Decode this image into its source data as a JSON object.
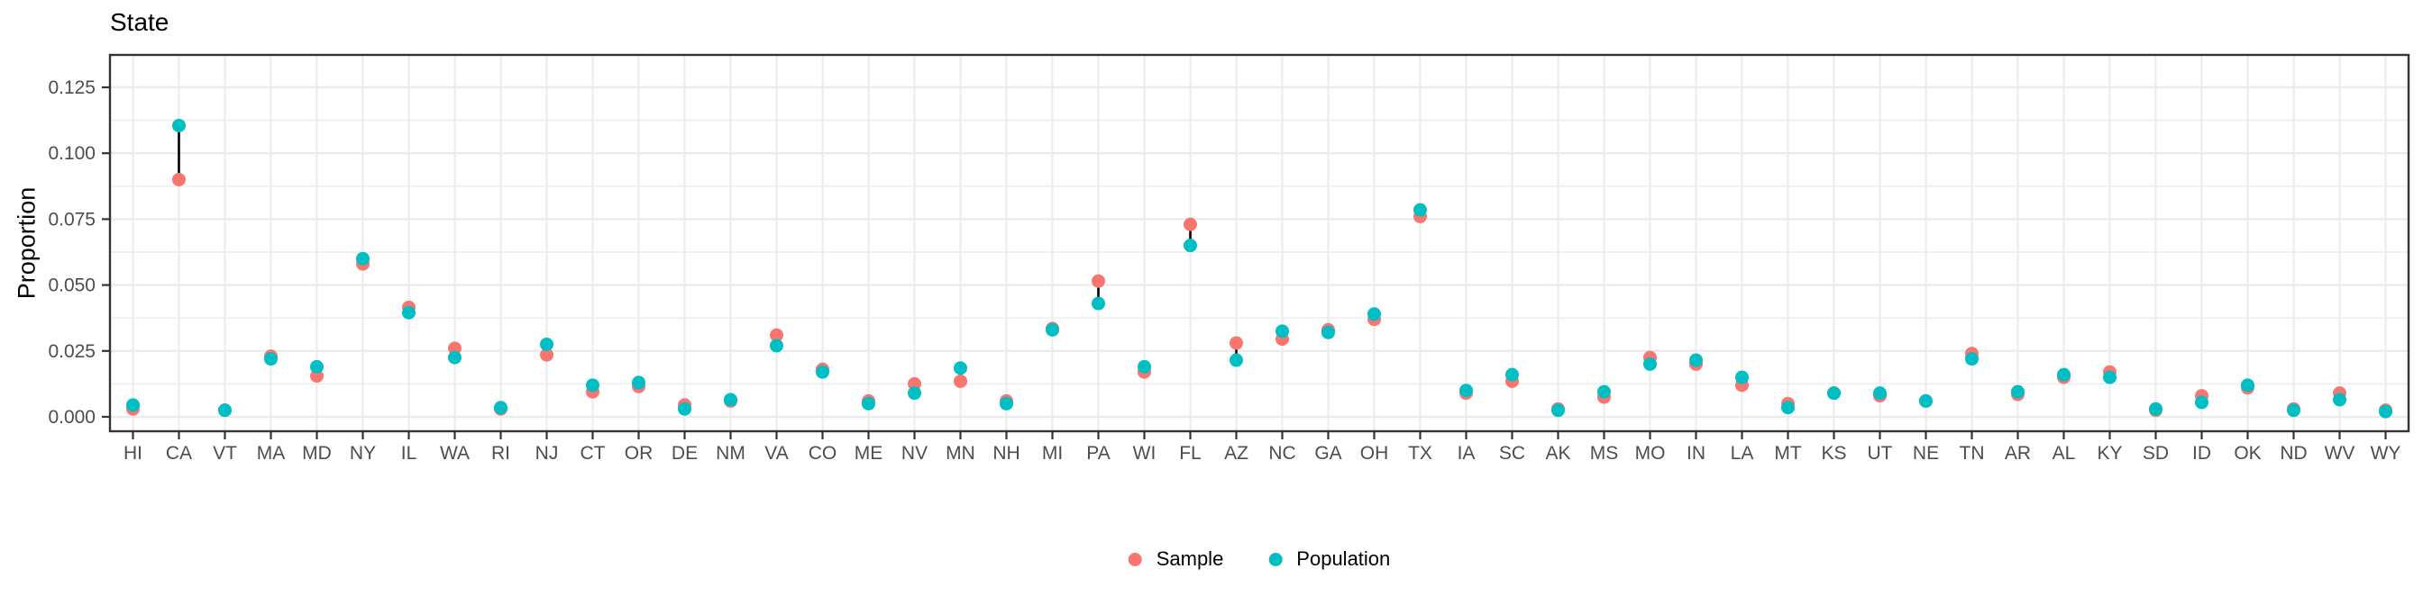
{
  "chart_data": {
    "type": "scatter",
    "subtype": "dumbbell",
    "title": "State",
    "xlabel": "",
    "ylabel": "Proportion",
    "categories": [
      "HI",
      "CA",
      "VT",
      "MA",
      "MD",
      "NY",
      "IL",
      "WA",
      "RI",
      "NJ",
      "CT",
      "OR",
      "DE",
      "NM",
      "VA",
      "CO",
      "ME",
      "NV",
      "MN",
      "NH",
      "MI",
      "PA",
      "WI",
      "FL",
      "AZ",
      "NC",
      "GA",
      "OH",
      "TX",
      "IA",
      "SC",
      "AK",
      "MS",
      "MO",
      "IN",
      "LA",
      "MT",
      "KS",
      "UT",
      "NE",
      "TN",
      "AR",
      "AL",
      "KY",
      "SD",
      "ID",
      "OK",
      "ND",
      "WV",
      "WY"
    ],
    "series": [
      {
        "name": "Sample",
        "color": "#F8766D",
        "values": [
          0.003,
          0.09,
          0.0025,
          0.023,
          0.0155,
          0.058,
          0.0415,
          0.026,
          0.003,
          0.0235,
          0.0095,
          0.0115,
          0.0045,
          0.006,
          0.031,
          0.018,
          0.006,
          0.0125,
          0.0135,
          0.006,
          0.0335,
          0.0515,
          0.017,
          0.073,
          0.028,
          0.0295,
          0.033,
          0.037,
          0.076,
          0.009,
          0.0135,
          0.003,
          0.0075,
          0.0225,
          0.02,
          0.012,
          0.005,
          0.009,
          0.008,
          0.006,
          0.024,
          0.0085,
          0.015,
          0.017,
          0.0025,
          0.008,
          0.011,
          0.003,
          0.009,
          0.0025
        ]
      },
      {
        "name": "Population",
        "color": "#00BFC4",
        "values": [
          0.0045,
          0.1105,
          0.0025,
          0.022,
          0.019,
          0.06,
          0.0395,
          0.0225,
          0.0035,
          0.0275,
          0.012,
          0.013,
          0.003,
          0.0065,
          0.027,
          0.017,
          0.005,
          0.009,
          0.0185,
          0.005,
          0.033,
          0.043,
          0.019,
          0.065,
          0.0215,
          0.0325,
          0.032,
          0.039,
          0.0785,
          0.01,
          0.016,
          0.0025,
          0.0095,
          0.02,
          0.0215,
          0.015,
          0.0035,
          0.009,
          0.009,
          0.006,
          0.022,
          0.0095,
          0.016,
          0.015,
          0.003,
          0.0055,
          0.012,
          0.0025,
          0.0065,
          0.002
        ]
      }
    ],
    "yticks": [
      0.0,
      0.025,
      0.05,
      0.075,
      0.1,
      0.125
    ],
    "ytick_labels": [
      "0.000",
      "0.025",
      "0.050",
      "0.075",
      "0.100",
      "0.125"
    ],
    "minor_step": 0.0125,
    "ylim": [
      -0.0055,
      0.1373
    ],
    "grid": "major+minor",
    "legend_position": "bottom",
    "connector_color": "#000000",
    "panel_border_color": "#343434",
    "grid_color": "#EBEBEB",
    "axis_text_color": "#4D4D4D"
  }
}
